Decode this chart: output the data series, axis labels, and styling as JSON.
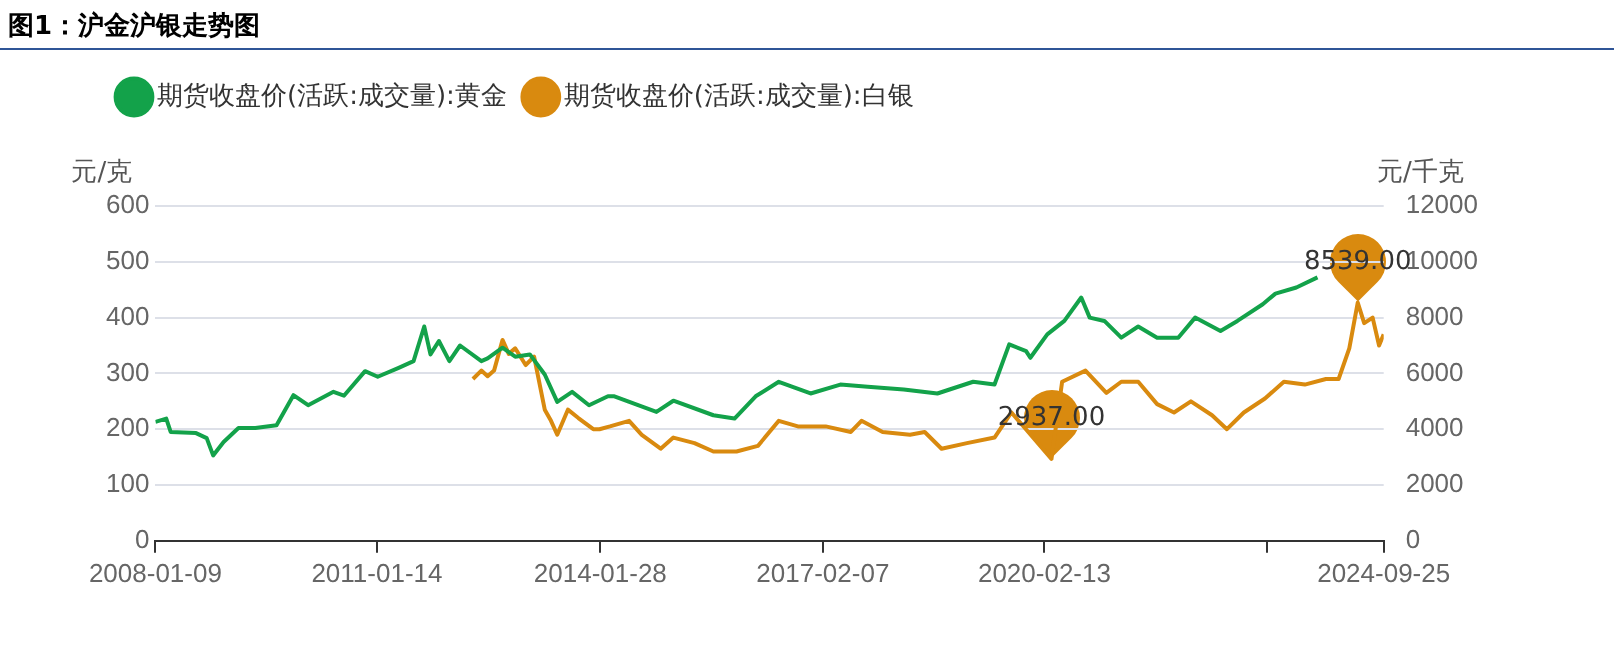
{
  "chart_data": {
    "type": "line",
    "title": "图1：沪金沪银走势图",
    "ylabel": "元/克",
    "y2label": "元/千克",
    "xlim": [
      "2008-01-09",
      "2024-09-25"
    ],
    "xticks": [
      {
        "value": "2008-01-09",
        "label": "2008-01-09"
      },
      {
        "value": "2011-01-14",
        "label": "2011-01-14"
      },
      {
        "value": "2014-01-28",
        "label": "2014-01-28"
      },
      {
        "value": "2017-02-07",
        "label": "2017-02-07"
      },
      {
        "value": "2020-02-13",
        "label": "2020-02-13"
      },
      {
        "value": "2023-02-21",
        "label": null
      },
      {
        "value": "2024-09-25",
        "label": "2024-09-25"
      }
    ],
    "ylim": [
      0,
      600
    ],
    "yticks": [
      0,
      100,
      200,
      300,
      400,
      500,
      600
    ],
    "y2lim": [
      0,
      12000
    ],
    "y2ticks": [
      0,
      2000,
      4000,
      6000,
      8000,
      10000,
      12000
    ],
    "grid": "y",
    "legend": "top left",
    "marker": "none",
    "line_style": "solid",
    "series": [
      {
        "name": "期货收盘价(活跃:成交量):黄金",
        "color": "#13a24a",
        "x": [
          "2008-01-09",
          "2008-03-03",
          "2008-03-25",
          "2008-07-29",
          "2008-09-20",
          "2008-10-22",
          "2008-12-13",
          "2009-02-25",
          "2009-05-20",
          "2009-09-02",
          "2009-11-25",
          "2010-02-06",
          "2010-06-12",
          "2010-08-03",
          "2010-11-16",
          "2011-01-18",
          "2011-05-02",
          "2011-07-15",
          "2011-09-06",
          "2011-10-07",
          "2011-11-18",
          "2012-01-09",
          "2012-03-02",
          "2012-06-16",
          "2012-07-17",
          "2012-09-29",
          "2012-12-01",
          "2013-02-12",
          "2013-04-27",
          "2013-06-28",
          "2013-09-10",
          "2013-12-03",
          "2014-03-07",
          "2014-04-08",
          "2014-11-03",
          "2015-01-26",
          "2015-08-13",
          "2015-11-26",
          "2016-03-10",
          "2016-07-03",
          "2016-12-08",
          "2017-05-05",
          "2017-09-18",
          "2018-03-16",
          "2018-08-30",
          "2019-02-24",
          "2019-06-10",
          "2019-08-22",
          "2019-11-14",
          "2019-12-05",
          "2020-02-27",
          "2020-05-22",
          "2020-08-14",
          "2020-09-25",
          "2020-12-07",
          "2021-03-01",
          "2021-05-24",
          "2021-08-26",
          "2021-12-09",
          "2022-03-03",
          "2022-07-07",
          "2022-09-29",
          "2023-02-02",
          "2023-04-06",
          "2023-07-19",
          "2023-11-01"
        ],
        "values": [
          213,
          219,
          195,
          193,
          184,
          153,
          177,
          202,
          202,
          207,
          261,
          243,
          267,
          260,
          304,
          294,
          310,
          322,
          384,
          334,
          358,
          322,
          350,
          322,
          327,
          346,
          330,
          334,
          298,
          249,
          267,
          243,
          259,
          259,
          231,
          251,
          225,
          219,
          259,
          285,
          264,
          280,
          276,
          271,
          264,
          285,
          280,
          352,
          340,
          328,
          370,
          394,
          436,
          400,
          394,
          364,
          384,
          364,
          364,
          400,
          376,
          394,
          424,
          443,
          454,
          472
        ]
      },
      {
        "name": "期货收盘价(活跃:成交量):白银",
        "color": "#d98a0f",
        "axis": "y2",
        "x": [
          "2012-05-05",
          "2012-06-16",
          "2012-07-17",
          "2012-08-18",
          "2012-09-29",
          "2012-10-30",
          "2012-12-01",
          "2013-01-22",
          "2013-03-05",
          "2013-04-27",
          "2013-05-28",
          "2013-06-28",
          "2013-08-20",
          "2013-10-11",
          "2013-12-24",
          "2014-01-24",
          "2014-03-17",
          "2014-06-20",
          "2014-08-22",
          "2014-11-24",
          "2015-01-26",
          "2015-05-11",
          "2015-08-13",
          "2015-12-06",
          "2016-03-21",
          "2016-07-03",
          "2016-10-06",
          "2017-02-21",
          "2017-06-26",
          "2017-08-18",
          "2017-12-01",
          "2018-04-16",
          "2018-06-28",
          "2018-09-20",
          "2019-01-24",
          "2019-06-10",
          "2019-09-02",
          "2020-03-19",
          "2020-05-11",
          "2020-09-04",
          "2020-12-17",
          "2021-03-01",
          "2021-05-24",
          "2021-08-26",
          "2021-11-18",
          "2022-02-10",
          "2022-05-26",
          "2022-08-08",
          "2022-10-31",
          "2023-02-13",
          "2023-05-18",
          "2023-08-30",
          "2023-12-13",
          "2024-02-14",
          "2024-04-07",
          "2024-05-19",
          "2024-06-20",
          "2024-08-01",
          "2024-09-02",
          "2024-09-25"
        ],
        "values": [
          5800,
          6100,
          5900,
          6100,
          7200,
          6700,
          6900,
          6300,
          6600,
          4700,
          4300,
          3800,
          4700,
          4400,
          4000,
          4000,
          4100,
          4300,
          3800,
          3300,
          3700,
          3500,
          3200,
          3200,
          3400,
          4300,
          4100,
          4100,
          3900,
          4300,
          3900,
          3800,
          3900,
          3300,
          3500,
          3700,
          4600,
          2937,
          5700,
          6100,
          5300,
          5700,
          5700,
          4900,
          4600,
          5000,
          4500,
          4000,
          4600,
          5100,
          5700,
          5600,
          5800,
          5800,
          6900,
          8539,
          7800,
          8000,
          7000,
          7400
        ]
      }
    ],
    "annotations": [
      "2937.00",
      "8539.00"
    ]
  }
}
